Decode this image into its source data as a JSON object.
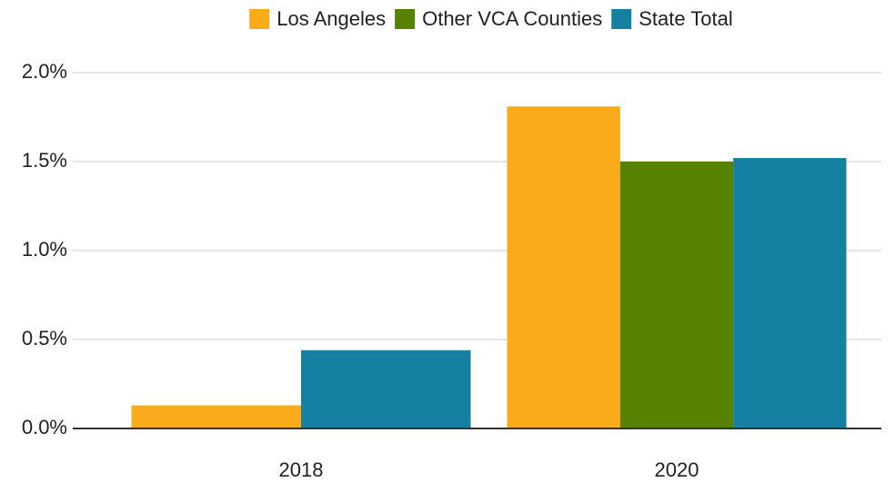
{
  "chart_data": {
    "type": "bar",
    "categories": [
      "2018",
      "2020"
    ],
    "series": [
      {
        "name": "Los Angeles",
        "color": "#f9ab1b",
        "values": [
          0.13,
          1.81
        ]
      },
      {
        "name": "Other VCA Counties",
        "color": "#568200",
        "values": [
          null,
          1.5
        ]
      },
      {
        "name": "State Total",
        "color": "#1481a3",
        "values": [
          0.44,
          1.52
        ]
      }
    ],
    "ylim": [
      0,
      2
    ],
    "yticks": [
      {
        "value": 0,
        "label": "0.0%"
      },
      {
        "value": 0.5,
        "label": "0.5%"
      },
      {
        "value": 1,
        "label": "1.0%"
      },
      {
        "value": 1.5,
        "label": "1.5%"
      },
      {
        "value": 2,
        "label": "2.0%"
      }
    ],
    "grid": true,
    "legend": "top"
  }
}
